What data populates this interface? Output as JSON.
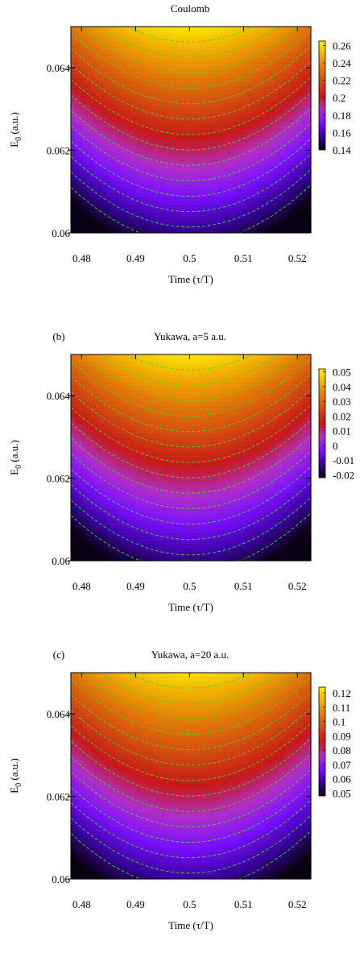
{
  "chart_data": [
    {
      "type": "heatmap",
      "panel_label": "",
      "title": "Coulomb",
      "xlabel": "Time (τ/T)",
      "ylabel": "E",
      "ylabel_sub": "0",
      "ylabel_unit": " (a.u.)",
      "xlim": [
        0.478,
        0.5225
      ],
      "ylim": [
        0.06,
        0.065
      ],
      "xticks": [
        0.48,
        0.49,
        0.5,
        0.51,
        0.52
      ],
      "xtick_labels": [
        "0.48",
        "0.49",
        "0.5",
        "0.51",
        "0.52"
      ],
      "yticks": [
        0.06,
        0.062,
        0.064
      ],
      "ytick_labels": [
        "0.06",
        "0.062",
        "0.064"
      ],
      "colorbar_range": [
        0.14,
        0.265
      ],
      "colorbar_ticks": [
        0.26,
        0.24,
        0.22,
        0.2,
        0.18,
        0.16,
        0.14
      ],
      "colorbar_labels": [
        "0.26",
        "0.24",
        "0.22",
        "0.2",
        "0.18",
        "0.16",
        "0.14"
      ],
      "surface": {
        "center_time": 0.5,
        "max_value": 0.262,
        "min_value": 0.135
      },
      "contour_count": 15,
      "contour_color": "#44d62c",
      "contour_style": "dashed"
    },
    {
      "type": "heatmap",
      "panel_label": "(b)",
      "title": "Yukawa, a=5 a.u.",
      "xlabel": "Time (τ/T)",
      "ylabel": "E",
      "ylabel_sub": "0",
      "ylabel_unit": " (a.u.)",
      "xlim": [
        0.478,
        0.5225
      ],
      "ylim": [
        0.06,
        0.065
      ],
      "xticks": [
        0.48,
        0.49,
        0.5,
        0.51,
        0.52
      ],
      "xtick_labels": [
        "0.48",
        "0.49",
        "0.5",
        "0.51",
        "0.52"
      ],
      "yticks": [
        0.06,
        0.062,
        0.064
      ],
      "ytick_labels": [
        "0.06",
        "0.062",
        "0.064"
      ],
      "colorbar_range": [
        -0.022,
        0.052
      ],
      "colorbar_ticks": [
        0.05,
        0.04,
        0.03,
        0.02,
        0.01,
        0,
        -0.01,
        -0.02
      ],
      "colorbar_labels": [
        "0.05",
        "0.04",
        "0.03",
        "0.02",
        "0.01",
        "0",
        "-0.01",
        "-0.02"
      ],
      "surface": {
        "center_time": 0.5,
        "max_value": 0.05,
        "min_value": -0.025
      },
      "contour_count": 15,
      "contour_color": "#44d62c",
      "contour_style": "dashed"
    },
    {
      "type": "heatmap",
      "panel_label": "(c)",
      "title": "Yukawa, a=20 a.u.",
      "xlabel": "Time (τ/T)",
      "ylabel": "E",
      "ylabel_sub": "0",
      "ylabel_unit": " (a.u.)",
      "xlim": [
        0.478,
        0.5225
      ],
      "ylim": [
        0.06,
        0.065
      ],
      "xticks": [
        0.48,
        0.49,
        0.5,
        0.51,
        0.52
      ],
      "xtick_labels": [
        "0.48",
        "0.49",
        "0.5",
        "0.51",
        "0.52"
      ],
      "yticks": [
        0.06,
        0.062,
        0.064
      ],
      "ytick_labels": [
        "0.06",
        "0.062",
        "0.064"
      ],
      "colorbar_range": [
        0.048,
        0.124
      ],
      "colorbar_ticks": [
        0.12,
        0.11,
        0.1,
        0.09,
        0.08,
        0.07,
        0.06,
        0.05
      ],
      "colorbar_labels": [
        "0.12",
        "0.11",
        "0.1",
        "0.09",
        "0.08",
        "0.07",
        "0.06",
        "0.05"
      ],
      "surface": {
        "center_time": 0.5,
        "max_value": 0.121,
        "min_value": 0.047
      },
      "contour_count": 15,
      "contour_color": "#44d62c",
      "contour_style": "dashed"
    }
  ],
  "colormap": [
    "#0a0014",
    "#3a00a0",
    "#7a10ff",
    "#b030c8",
    "#c81818",
    "#d24a10",
    "#e07808",
    "#f0b000",
    "#fff200"
  ]
}
